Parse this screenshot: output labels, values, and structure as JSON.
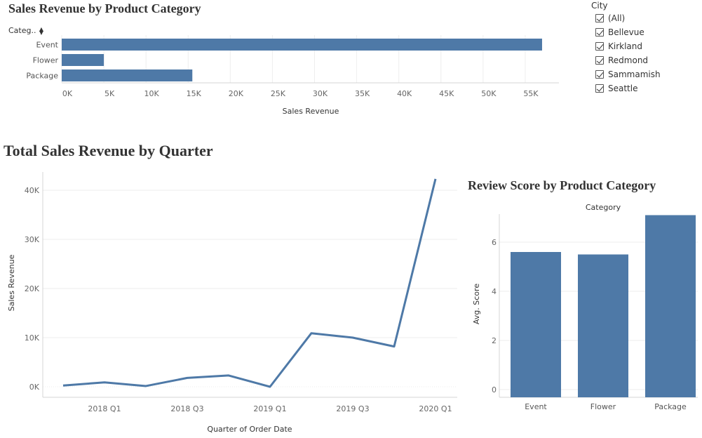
{
  "colors": {
    "bar": "#4e79a7",
    "grid": "#eeeeee",
    "axis": "#d4d4d4"
  },
  "top_chart": {
    "title": "Sales Revenue by Product Category",
    "header": "Categ..",
    "sort_icon": "sort-ascending-icon"
  },
  "line_chart": {
    "title": "Total Sales Revenue by Quarter"
  },
  "review_chart": {
    "title": "Review Score by Product Category",
    "header": "Category"
  },
  "city_filter": {
    "title": "City",
    "items": [
      {
        "label": "(All)",
        "checked": true
      },
      {
        "label": "Bellevue",
        "checked": true
      },
      {
        "label": "Kirkland",
        "checked": true
      },
      {
        "label": "Redmond",
        "checked": true
      },
      {
        "label": "Sammamish",
        "checked": true
      },
      {
        "label": "Seattle",
        "checked": true
      }
    ]
  },
  "chart_data": [
    {
      "type": "bar",
      "orientation": "horizontal",
      "title": "Sales Revenue by Product Category",
      "categories": [
        "Event",
        "Flower",
        "Package"
      ],
      "values": [
        57000,
        5000,
        15500
      ],
      "xlabel": "Sales Revenue",
      "ylabel": "Categ..",
      "xlim": [
        0,
        59000
      ],
      "xticks": [
        0,
        5000,
        10000,
        15000,
        20000,
        25000,
        30000,
        35000,
        40000,
        45000,
        50000,
        55000
      ],
      "xtick_labels": [
        "0K",
        "5K",
        "10K",
        "15K",
        "20K",
        "25K",
        "30K",
        "35K",
        "40K",
        "45K",
        "50K",
        "55K"
      ],
      "grid": true
    },
    {
      "type": "line",
      "title": "Total Sales Revenue by Quarter",
      "x": [
        "2017 Q4",
        "2018 Q1",
        "2018 Q2",
        "2018 Q3",
        "2018 Q4",
        "2019 Q1",
        "2019 Q2",
        "2019 Q3",
        "2019 Q4",
        "2020 Q1"
      ],
      "values": [
        250,
        900,
        150,
        1800,
        2300,
        0,
        10900,
        10000,
        8200,
        42300
      ],
      "xlabel": "Quarter of Order Date",
      "ylabel": "Sales Revenue",
      "ylim": [
        -1000,
        44000
      ],
      "yticks": [
        0,
        10000,
        20000,
        30000,
        40000
      ],
      "ytick_labels": [
        "0K",
        "10K",
        "20K",
        "30K",
        "40K"
      ],
      "xtick_labels_shown": [
        "2018 Q1",
        "2018 Q3",
        "2019 Q1",
        "2019 Q3",
        "2020 Q1"
      ],
      "grid": true
    },
    {
      "type": "bar",
      "title": "Review Score by Product Category",
      "categories": [
        "Event",
        "Flower",
        "Package"
      ],
      "values": [
        5.6,
        5.5,
        7.1
      ],
      "xlabel": "Category",
      "ylabel": "Avg. Score",
      "ylim": [
        -0.2,
        7.3
      ],
      "yticks": [
        0,
        2,
        4,
        6
      ],
      "grid": true
    }
  ]
}
